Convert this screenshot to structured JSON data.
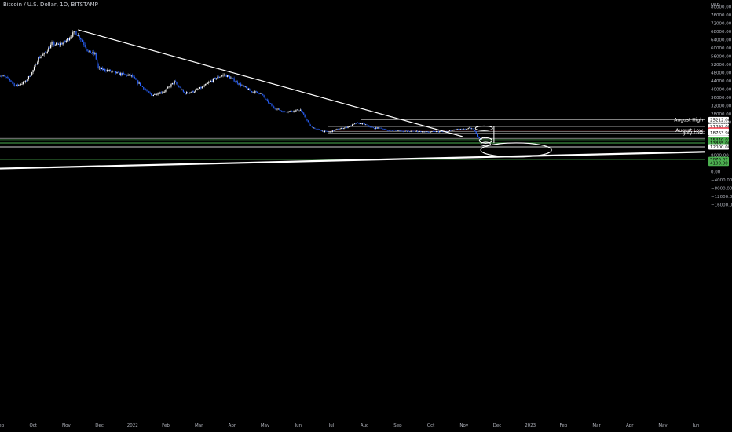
{
  "header": {
    "title": "Bitcoin / U.S. Dollar, 1D, BITSTAMP"
  },
  "colors": {
    "background": "#000000",
    "candle_up": "#ffffff",
    "candle_down": "#2962ff",
    "drawing": "#ffffff",
    "support_line": "#4caf50",
    "resistance_line": "#f23645",
    "tag_green": "#4caf50",
    "tag_red": "#f23645",
    "tag_white": "#ffffff"
  },
  "chart_data": {
    "type": "candlestick",
    "title": "Bitcoin / U.S. Dollar, 1D, BITSTAMP",
    "y_unit": "USD",
    "ylim": [
      -16000,
      84000
    ],
    "y_ticks": [
      80000,
      76000,
      72000,
      68000,
      64000,
      60000,
      56000,
      52000,
      48000,
      44000,
      40000,
      36000,
      32000,
      28000,
      24000,
      8000,
      4000,
      0,
      -4000,
      -8000,
      -12000,
      -16000
    ],
    "y_tick_labels": [
      "80000.00",
      "76000.00",
      "72000.00",
      "68000.00",
      "64000.00",
      "60000.00",
      "56000.00",
      "52000.00",
      "48000.00",
      "44000.00",
      "40000.00",
      "36000.00",
      "32000.00",
      "28000.00",
      "24000.00",
      "8000.00",
      "4000.00",
      "0.00",
      "−4000.00",
      "−8000.00",
      "−12000.00",
      "−16000.00"
    ],
    "x_ticks": [
      "Sep",
      "Oct",
      "Nov",
      "Dec",
      "2022",
      "Feb",
      "Mar",
      "Apr",
      "May",
      "Jun",
      "Jul",
      "Aug",
      "Sep",
      "Oct",
      "Nov",
      "Dec",
      "2023",
      "Feb",
      "Mar",
      "Apr",
      "May",
      "Jun"
    ],
    "x_tick_months": [
      0,
      1,
      2,
      3,
      4,
      5,
      6,
      7,
      8,
      9,
      10,
      11,
      12,
      13,
      14,
      15,
      16,
      17,
      18,
      19,
      20,
      21
    ],
    "price_path": [
      [
        0.0,
        47000
      ],
      [
        0.3,
        45000
      ],
      [
        0.5,
        41500
      ],
      [
        0.8,
        43500
      ],
      [
        1.0,
        48000
      ],
      [
        1.2,
        55000
      ],
      [
        1.4,
        57500
      ],
      [
        1.6,
        62000
      ],
      [
        1.8,
        61500
      ],
      [
        2.0,
        63000
      ],
      [
        2.3,
        67800
      ],
      [
        2.5,
        64000
      ],
      [
        2.7,
        58000
      ],
      [
        2.9,
        57000
      ],
      [
        3.0,
        50000
      ],
      [
        3.3,
        49000
      ],
      [
        3.6,
        47500
      ],
      [
        3.8,
        47000
      ],
      [
        4.0,
        46500
      ],
      [
        4.3,
        41500
      ],
      [
        4.6,
        37000
      ],
      [
        4.8,
        38000
      ],
      [
        5.0,
        39000
      ],
      [
        5.3,
        43500
      ],
      [
        5.6,
        38000
      ],
      [
        5.9,
        39000
      ],
      [
        6.2,
        41500
      ],
      [
        6.5,
        45000
      ],
      [
        6.8,
        47000
      ],
      [
        7.0,
        45500
      ],
      [
        7.3,
        42000
      ],
      [
        7.6,
        39000
      ],
      [
        7.9,
        38000
      ],
      [
        8.1,
        34000
      ],
      [
        8.3,
        31000
      ],
      [
        8.6,
        29000
      ],
      [
        8.9,
        29500
      ],
      [
        9.1,
        30000
      ],
      [
        9.4,
        22000
      ],
      [
        9.6,
        20500
      ],
      [
        9.8,
        19500
      ],
      [
        10.0,
        19200
      ],
      [
        10.2,
        20500
      ],
      [
        10.5,
        21500
      ],
      [
        10.8,
        23500
      ],
      [
        11.0,
        23200
      ],
      [
        11.3,
        21000
      ],
      [
        11.5,
        21300
      ],
      [
        11.7,
        20000
      ],
      [
        12.0,
        20000
      ],
      [
        12.3,
        19500
      ],
      [
        12.6,
        19600
      ],
      [
        12.9,
        19200
      ],
      [
        13.2,
        19400
      ],
      [
        13.5,
        19300
      ],
      [
        13.8,
        20500
      ],
      [
        14.0,
        20400
      ],
      [
        14.2,
        21000
      ],
      [
        14.35,
        20500
      ],
      [
        14.45,
        16500
      ],
      [
        14.55,
        15800
      ],
      [
        14.6,
        16600
      ]
    ],
    "horizontal_levels": [
      {
        "price": 25212.0,
        "label": "25212.00",
        "name": "August High",
        "tag": "white"
      },
      {
        "price": 21892.0,
        "label": "21892.00",
        "tag": "white"
      },
      {
        "price": 20076.81,
        "label": "20076.81",
        "tag": "red"
      },
      {
        "price": 19526.0,
        "label": "19526.00",
        "tag": "white"
      },
      {
        "price": 18763.96,
        "label": "18763.96",
        "tag": "white"
      },
      {
        "price": 16108.0,
        "label": "16108.00",
        "tag": "white"
      },
      {
        "price": 15440.03,
        "label": "15440.03",
        "tag": "green"
      },
      {
        "price": 13885.0,
        "label": "13885.00",
        "tag": "green"
      },
      {
        "price": 12000.0,
        "label": "12000.00",
        "tag": "white"
      },
      {
        "price": 5876.37,
        "label": "5876.37",
        "tag": "green"
      },
      {
        "price": 4100.0,
        "label": "4100.00",
        "tag": "green"
      }
    ],
    "annotations": [
      {
        "text": "August High",
        "price": 25212.0
      },
      {
        "text": "August Low",
        "price": 20076.81
      },
      {
        "text": "July Low",
        "price": 18763.96
      }
    ]
  }
}
